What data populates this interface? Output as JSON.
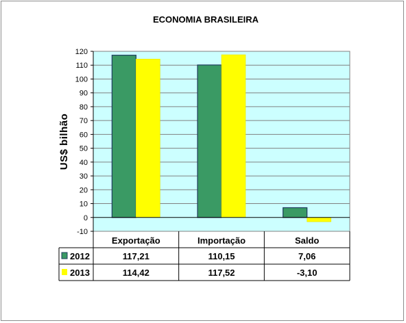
{
  "chart_data": {
    "type": "bar",
    "title": "ECONOMIA BRASILEIRA",
    "xlabel": "",
    "ylabel": "US$ bilhão",
    "ylim": [
      -10,
      120
    ],
    "yticks": [
      -10,
      0,
      10,
      20,
      30,
      40,
      50,
      60,
      70,
      80,
      90,
      100,
      110,
      120
    ],
    "grid": true,
    "legend": "data-table",
    "categories": [
      "Exportação",
      "Importação",
      "Saldo"
    ],
    "series": [
      {
        "name": "2012",
        "values": [
          117.21,
          110.15,
          7.06
        ],
        "labels": [
          "117,21",
          "110,15",
          "7,06"
        ],
        "color": "#3a9a64"
      },
      {
        "name": "2013",
        "values": [
          114.42,
          117.52,
          -3.1
        ],
        "labels": [
          "114,42",
          "117,52",
          "-3,10"
        ],
        "color": "#ffff00"
      }
    ],
    "plot_background": "#ccffff"
  }
}
